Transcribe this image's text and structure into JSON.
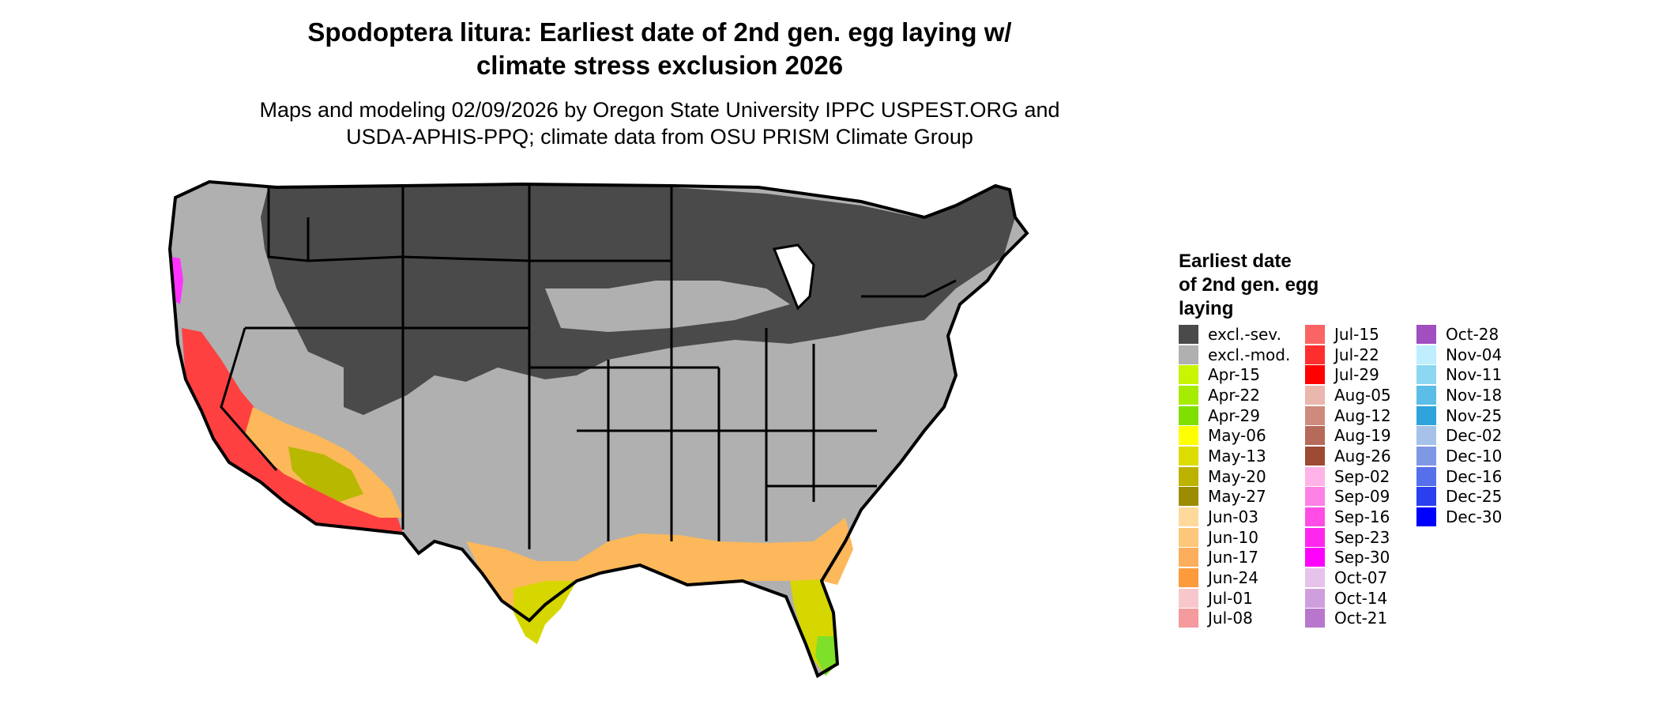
{
  "title": {
    "line1": "Spodoptera litura: Earliest date of 2nd gen. egg laying w/",
    "line2": "climate stress exclusion 2026"
  },
  "subtitle": {
    "line1": "Maps and modeling 02/09/2026 by Oregon State University IPPC USPEST.ORG and",
    "line2": "USDA-APHIS-PPQ; climate data from OSU PRISM Climate Group"
  },
  "map": {
    "region_colors": {
      "excluded_severe": "#4a4a4a",
      "excluded_moderate": "#b0b0b0",
      "spring": "#b8b800",
      "early_summer": "#fcb85a",
      "summer_red": "#ff4040",
      "fall_magenta": "#ff33ff",
      "florida_south": "#d6d600",
      "florida_tip": "#7fe02a"
    }
  },
  "legend": {
    "title_lines": [
      "Earliest date",
      "of 2nd gen. egg",
      "laying"
    ],
    "columns": [
      [
        {
          "label": "excl.-sev.",
          "color": "#4a4a4a"
        },
        {
          "label": "excl.-mod.",
          "color": "#b0b0b0"
        },
        {
          "label": "Apr-15",
          "color": "#c8f500"
        },
        {
          "label": "Apr-22",
          "color": "#a6ec00"
        },
        {
          "label": "Apr-29",
          "color": "#7fe000"
        },
        {
          "label": "May-06",
          "color": "#ffff00"
        },
        {
          "label": "May-13",
          "color": "#dcdc00"
        },
        {
          "label": "May-20",
          "color": "#bcb200"
        },
        {
          "label": "May-27",
          "color": "#9c8c00"
        },
        {
          "label": "Jun-03",
          "color": "#ffd99b"
        },
        {
          "label": "Jun-10",
          "color": "#fcc77a"
        },
        {
          "label": "Jun-17",
          "color": "#fcae5c"
        },
        {
          "label": "Jun-24",
          "color": "#fc9b3c"
        },
        {
          "label": "Jul-01",
          "color": "#f7c7cb"
        },
        {
          "label": "Jul-08",
          "color": "#f59a9d"
        }
      ],
      [
        {
          "label": "Jul-15",
          "color": "#fa6464"
        },
        {
          "label": "Jul-22",
          "color": "#ff2e2e"
        },
        {
          "label": "Jul-29",
          "color": "#ff0000"
        },
        {
          "label": "Aug-05",
          "color": "#e9b7ae"
        },
        {
          "label": "Aug-12",
          "color": "#cf8a7e"
        },
        {
          "label": "Aug-19",
          "color": "#b66a59"
        },
        {
          "label": "Aug-26",
          "color": "#9f4a33"
        },
        {
          "label": "Sep-02",
          "color": "#ffb3e6"
        },
        {
          "label": "Sep-09",
          "color": "#ff80e6"
        },
        {
          "label": "Sep-16",
          "color": "#ff4de6"
        },
        {
          "label": "Sep-23",
          "color": "#ff26f0"
        },
        {
          "label": "Sep-30",
          "color": "#ff00ff"
        },
        {
          "label": "Oct-07",
          "color": "#e6c3eb"
        },
        {
          "label": "Oct-14",
          "color": "#cf9fdd"
        },
        {
          "label": "Oct-21",
          "color": "#b877cc"
        }
      ],
      [
        {
          "label": "Oct-28",
          "color": "#a04ec0"
        },
        {
          "label": "Nov-04",
          "color": "#bfeeff"
        },
        {
          "label": "Nov-11",
          "color": "#8cd8f2"
        },
        {
          "label": "Nov-18",
          "color": "#5cbde8"
        },
        {
          "label": "Nov-25",
          "color": "#2ea3dc"
        },
        {
          "label": "Dec-02",
          "color": "#a6c2e8"
        },
        {
          "label": "Dec-10",
          "color": "#7f98e6"
        },
        {
          "label": "Dec-16",
          "color": "#5570ea"
        },
        {
          "label": "Dec-25",
          "color": "#2a3ff0"
        },
        {
          "label": "Dec-30",
          "color": "#0000ff"
        }
      ]
    ]
  }
}
